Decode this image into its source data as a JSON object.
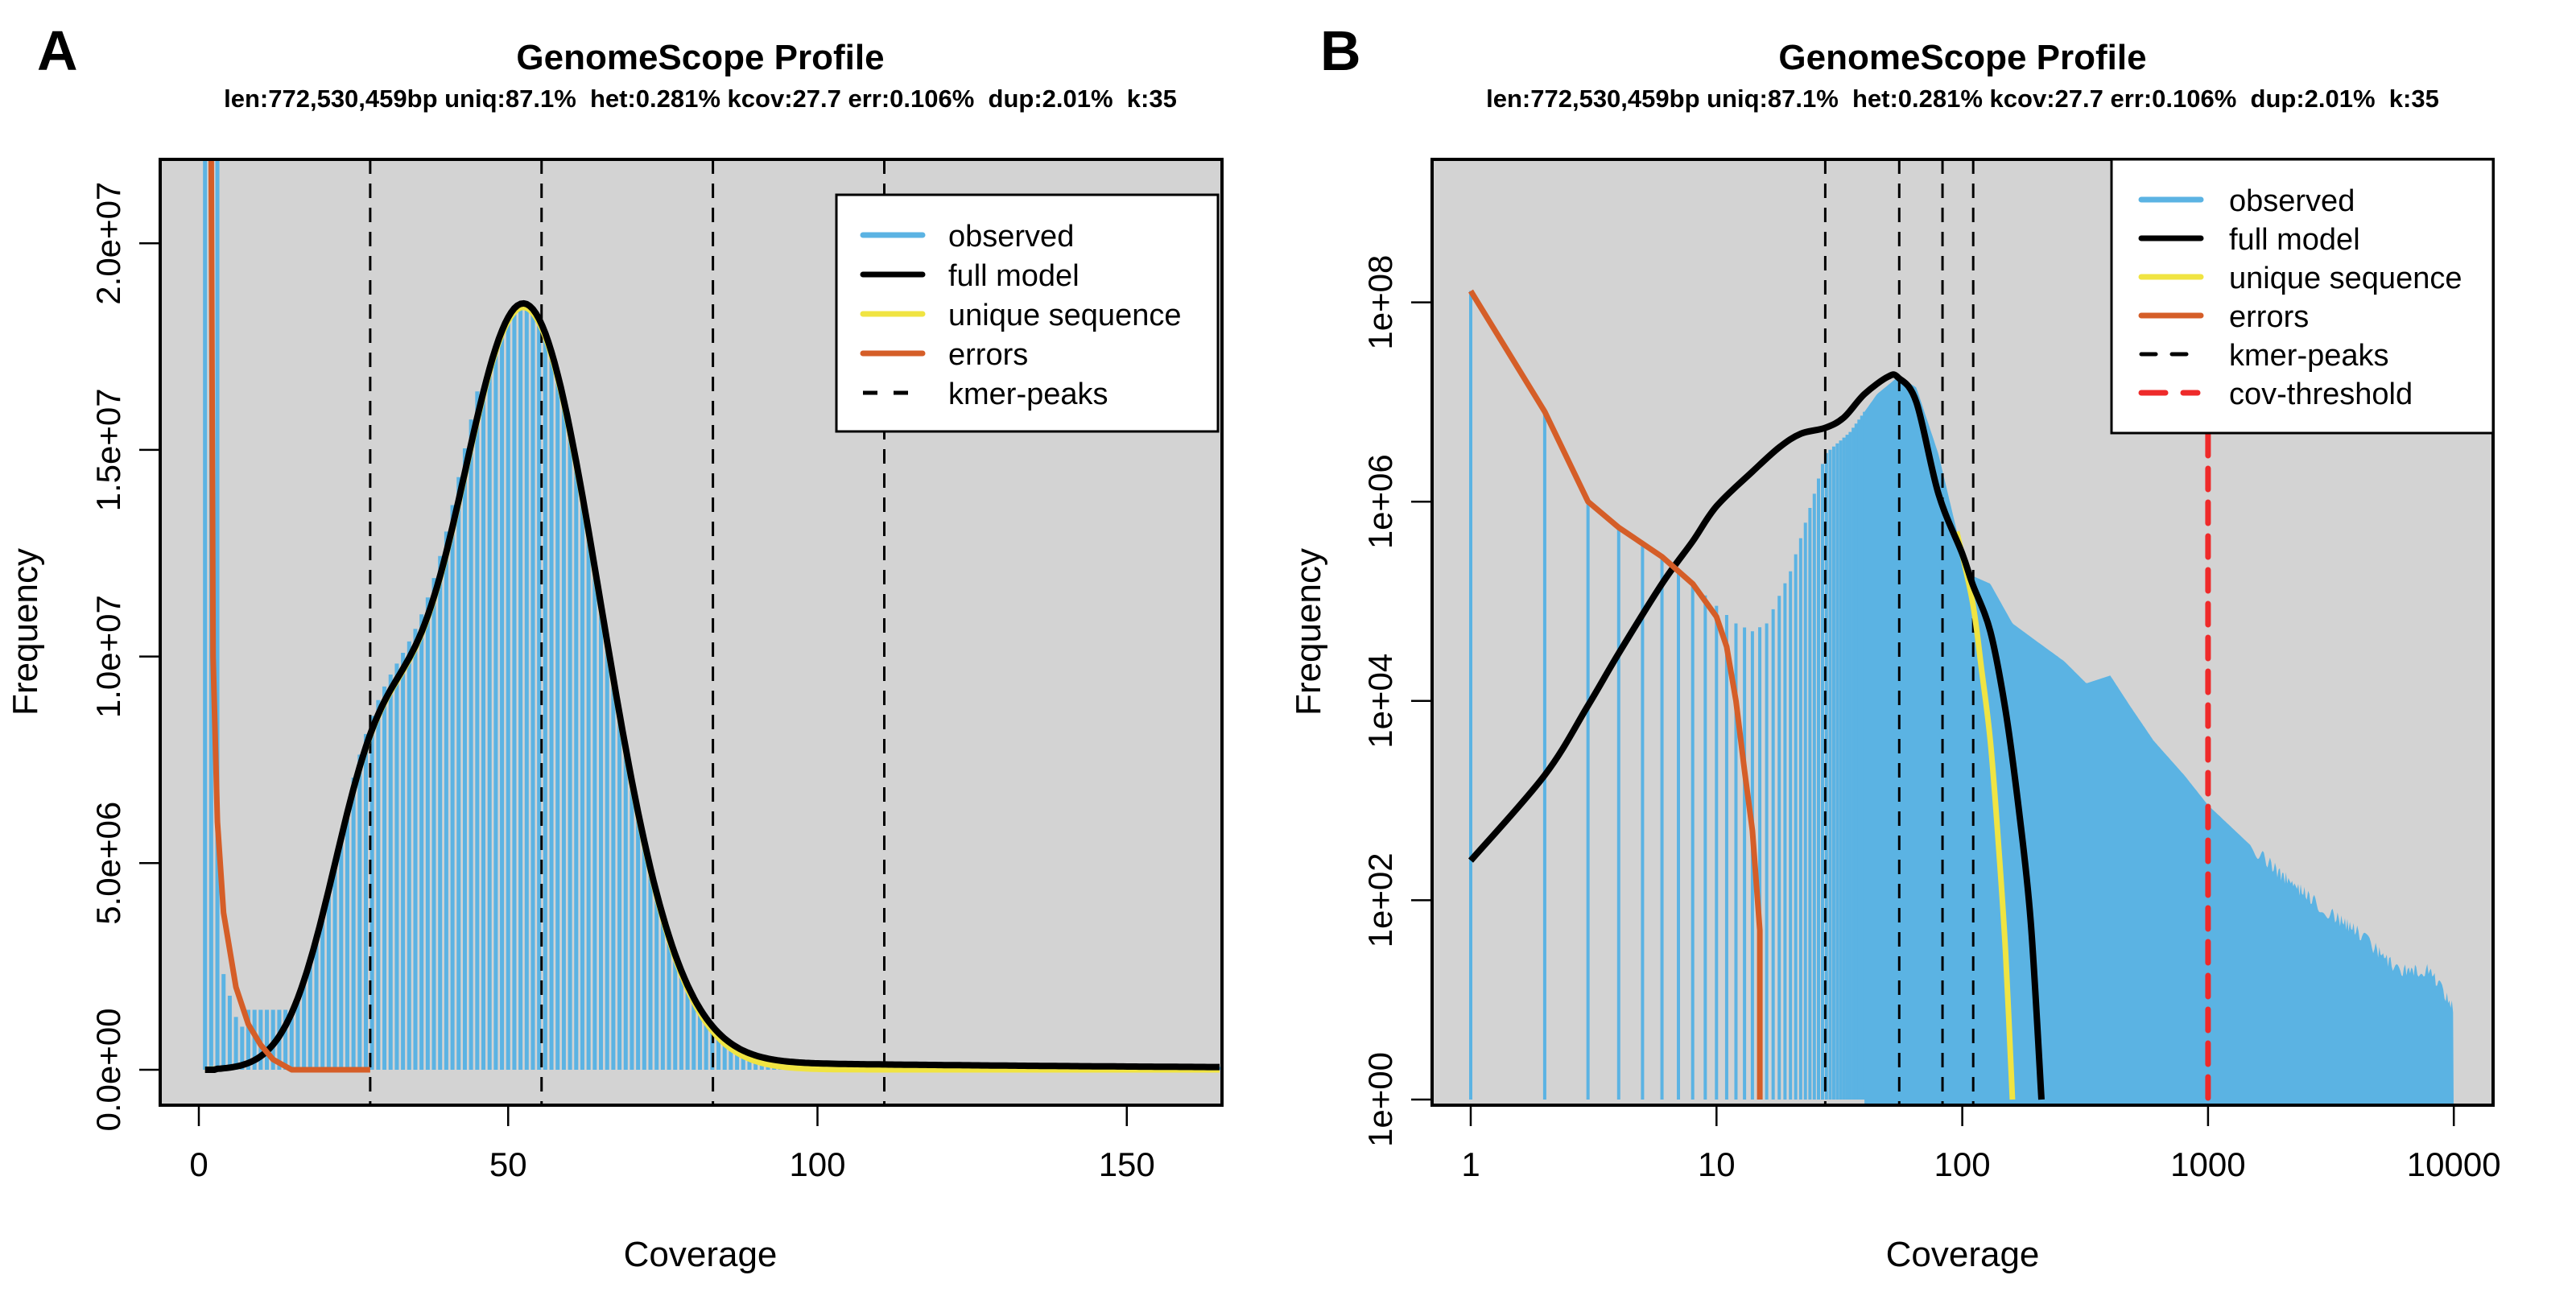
{
  "chart_data": [
    {
      "panel_label": "A",
      "type": "bar",
      "title": "GenomeScope Profile",
      "subtitle": "len:772,530,459bp uniq:87.1%  het:0.281% kcov:27.7 err:0.106%  dup:2.01%  k:35",
      "xlabel": "Coverage",
      "ylabel": "Frequency",
      "xscale": "linear",
      "yscale": "linear",
      "xlim": [
        -3,
        165
      ],
      "ylim": [
        -900000,
        22000000
      ],
      "xticks": [
        0,
        50,
        100,
        150
      ],
      "xtick_labels": [
        "0",
        "50",
        "100",
        "150"
      ],
      "yticks": [
        0,
        5000000,
        10000000,
        15000000,
        20000000
      ],
      "ytick_labels": [
        "0.0e+00",
        "5.0e+06",
        "1.0e+07",
        "1.5e+07",
        "2.0e+07"
      ],
      "background": "#d3d3d3",
      "kmer_peaks": [
        27.7,
        55.4,
        83.1,
        110.8
      ],
      "model_params": {
        "kcov": 27.7,
        "het_peak_height": 6500000,
        "hom_peak_height": 19300000,
        "hom_peak_x": 52.5
      },
      "series": [
        {
          "name": "observed",
          "color": "#5bb3e3",
          "style": "bars",
          "description": "histogram bars; error spike >2.2e7 at coverage 1-3, trough ~1.5e6 near 11, shoulder ~6.8e6 at 28, peak ~1.93e7 at 52, tail ~1e5 beyond 110"
        },
        {
          "name": "full model",
          "color": "#000000",
          "style": "solid"
        },
        {
          "name": "unique sequence",
          "color": "#f0e442",
          "style": "solid"
        },
        {
          "name": "errors",
          "color": "#d55e28",
          "style": "solid",
          "points": [
            [
              2,
              22000000
            ],
            [
              2.3,
              10000000
            ],
            [
              3,
              6000000
            ],
            [
              4,
              3800000
            ],
            [
              6,
              2000000
            ],
            [
              8,
              1100000
            ],
            [
              10,
              600000
            ],
            [
              12,
              250000
            ],
            [
              15,
              0
            ],
            [
              27.7,
              0
            ]
          ]
        },
        {
          "name": "kmer-peaks",
          "color": "#000000",
          "style": "dashed"
        }
      ],
      "legend": {
        "position": "top-right",
        "entries": [
          {
            "label": "observed",
            "color": "#5bb3e3",
            "style": "solid"
          },
          {
            "label": "full model",
            "color": "#000000",
            "style": "solid"
          },
          {
            "label": "unique sequence",
            "color": "#f0e442",
            "style": "solid"
          },
          {
            "label": "errors",
            "color": "#d55e28",
            "style": "solid"
          },
          {
            "label": "kmer-peaks",
            "color": "#000000",
            "style": "dashed"
          }
        ]
      }
    },
    {
      "panel_label": "B",
      "type": "bar",
      "title": "GenomeScope Profile",
      "subtitle": "len:772,530,459bp uniq:87.1%  het:0.281% kcov:27.7 err:0.106%  dup:2.01%  k:35",
      "xlabel": "Coverage",
      "ylabel": "Frequency",
      "xscale": "log",
      "yscale": "log",
      "xlim": [
        0.7,
        14000
      ],
      "ylim": [
        0.9,
        600000000
      ],
      "xticks": [
        1,
        10,
        100,
        1000,
        10000
      ],
      "xtick_labels": [
        "1",
        "10",
        "100",
        "1000",
        "10000"
      ],
      "yticks": [
        1,
        100,
        10000,
        1000000,
        100000000
      ],
      "ytick_labels": [
        "1e+00",
        "1e+02",
        "1e+04",
        "1e+06",
        "1e+08"
      ],
      "background": "#d3d3d3",
      "kmer_peaks": [
        27.7,
        55.4,
        83.1,
        110.8
      ],
      "cov_threshold": 1000,
      "series": [
        {
          "name": "observed",
          "color": "#5bb3e3",
          "style": "bars",
          "points": [
            [
              1,
              130000000
            ],
            [
              2,
              8000000
            ],
            [
              3,
              1000000
            ],
            [
              4,
              550000
            ],
            [
              5,
              380000
            ],
            [
              6,
              270000
            ],
            [
              8,
              150000
            ],
            [
              10,
              90000
            ],
            [
              12,
              60000
            ],
            [
              14,
              50000
            ],
            [
              16,
              60000
            ],
            [
              20,
              200000
            ],
            [
              25,
              1200000
            ],
            [
              27.7,
              3000000
            ],
            [
              35,
              5000000
            ],
            [
              45,
              12000000
            ],
            [
              55,
              18000000
            ],
            [
              65,
              14000000
            ],
            [
              80,
              3000000
            ],
            [
              100,
              300000
            ],
            [
              110,
              180000
            ],
            [
              130,
              150000
            ],
            [
              160,
              60000
            ],
            [
              200,
              40000
            ],
            [
              260,
              25000
            ],
            [
              320,
              15000
            ],
            [
              400,
              18000
            ],
            [
              480,
              9000
            ],
            [
              600,
              4000
            ],
            [
              800,
              1800
            ],
            [
              1000,
              900
            ],
            [
              1500,
              350
            ],
            [
              2000,
              180
            ],
            [
              3000,
              80
            ],
            [
              4000,
              50
            ],
            [
              5000,
              30
            ],
            [
              6000,
              20
            ],
            [
              8000,
              20
            ],
            [
              10000,
              8
            ]
          ]
        },
        {
          "name": "full model",
          "color": "#000000",
          "style": "solid",
          "points": [
            [
              1,
              250
            ],
            [
              2,
              1800
            ],
            [
              3,
              9000
            ],
            [
              4,
              30000
            ],
            [
              6,
              150000
            ],
            [
              8,
              400000
            ],
            [
              10,
              900000
            ],
            [
              14,
              2000000
            ],
            [
              18,
              3500000
            ],
            [
              22,
              4800000
            ],
            [
              27.7,
              5500000
            ],
            [
              33,
              7000000
            ],
            [
              40,
              12000000
            ],
            [
              50,
              18000000
            ],
            [
              55,
              17500000
            ],
            [
              65,
              10000000
            ],
            [
              80,
              1200000
            ],
            [
              100,
              300000
            ],
            [
              110,
              150000
            ],
            [
              130,
              50000
            ],
            [
              150,
              8000
            ],
            [
              170,
              800
            ],
            [
              190,
              60
            ],
            [
              210,
              1
            ]
          ]
        },
        {
          "name": "unique sequence",
          "color": "#f0e442",
          "style": "solid",
          "points": [
            [
              95,
              500000
            ],
            [
              110,
              100000
            ],
            [
              120,
              20000
            ],
            [
              130,
              4000
            ],
            [
              140,
              400
            ],
            [
              150,
              30
            ],
            [
              160,
              1
            ]
          ]
        },
        {
          "name": "errors",
          "color": "#d55e28",
          "style": "solid",
          "points": [
            [
              1,
              130000000
            ],
            [
              2,
              8000000
            ],
            [
              3,
              1000000
            ],
            [
              4,
              550000
            ],
            [
              6,
              280000
            ],
            [
              8,
              150000
            ],
            [
              10,
              70000
            ],
            [
              11,
              35000
            ],
            [
              12,
              10000
            ],
            [
              13,
              2000
            ],
            [
              14,
              500
            ],
            [
              15,
              50
            ],
            [
              15,
              1
            ]
          ]
        },
        {
          "name": "kmer-peaks",
          "color": "#000000",
          "style": "dashed"
        },
        {
          "name": "cov-threshold",
          "color": "#ee2a2a",
          "style": "dashed",
          "x": 1000
        }
      ],
      "legend": {
        "position": "top-right",
        "entries": [
          {
            "label": "observed",
            "color": "#5bb3e3",
            "style": "solid"
          },
          {
            "label": "full model",
            "color": "#000000",
            "style": "solid"
          },
          {
            "label": "unique sequence",
            "color": "#f0e442",
            "style": "solid"
          },
          {
            "label": "errors",
            "color": "#d55e28",
            "style": "solid"
          },
          {
            "label": "kmer-peaks",
            "color": "#000000",
            "style": "dashed"
          },
          {
            "label": "cov-threshold",
            "color": "#ee2a2a",
            "style": "dashed"
          }
        ]
      }
    }
  ]
}
